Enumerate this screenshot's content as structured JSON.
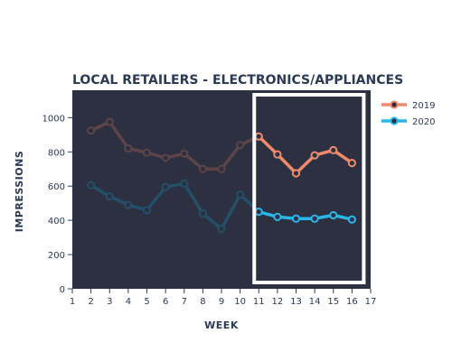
{
  "chart_data": {
    "type": "line",
    "title": "LOCAL RETAILERS - ELECTRONICS/APPLIANCES",
    "xlabel": "WEEK",
    "ylabel": "IMPRESSIONS",
    "xlim": [
      1,
      17
    ],
    "ylim": [
      0,
      1160
    ],
    "x_ticks": [
      "1",
      "2",
      "3",
      "4",
      "5",
      "6",
      "7",
      "8",
      "9",
      "10",
      "11",
      "12",
      "13",
      "14",
      "15",
      "16",
      "17"
    ],
    "y_ticks": [
      "0",
      "200",
      "400",
      "600",
      "800",
      "1000"
    ],
    "highlight_range": [
      11,
      16
    ],
    "background": "#2c3040",
    "series": [
      {
        "name": "2019",
        "color": "#f08a6c",
        "dim_color": "#5e4448",
        "x": [
          2,
          3,
          4,
          5,
          6,
          7,
          8,
          9,
          10,
          11,
          12,
          13,
          14,
          15,
          16
        ],
        "values": [
          925,
          975,
          820,
          795,
          765,
          790,
          700,
          700,
          840,
          890,
          785,
          675,
          780,
          810,
          735
        ]
      },
      {
        "name": "2020",
        "color": "#29b6e8",
        "dim_color": "#244f68",
        "x": [
          2,
          3,
          4,
          5,
          6,
          7,
          8,
          9,
          10,
          11,
          12,
          13,
          14,
          15,
          16
        ],
        "values": [
          605,
          540,
          490,
          460,
          595,
          615,
          440,
          350,
          550,
          450,
          420,
          410,
          410,
          430,
          405
        ]
      }
    ],
    "legend_position": "top-right"
  }
}
